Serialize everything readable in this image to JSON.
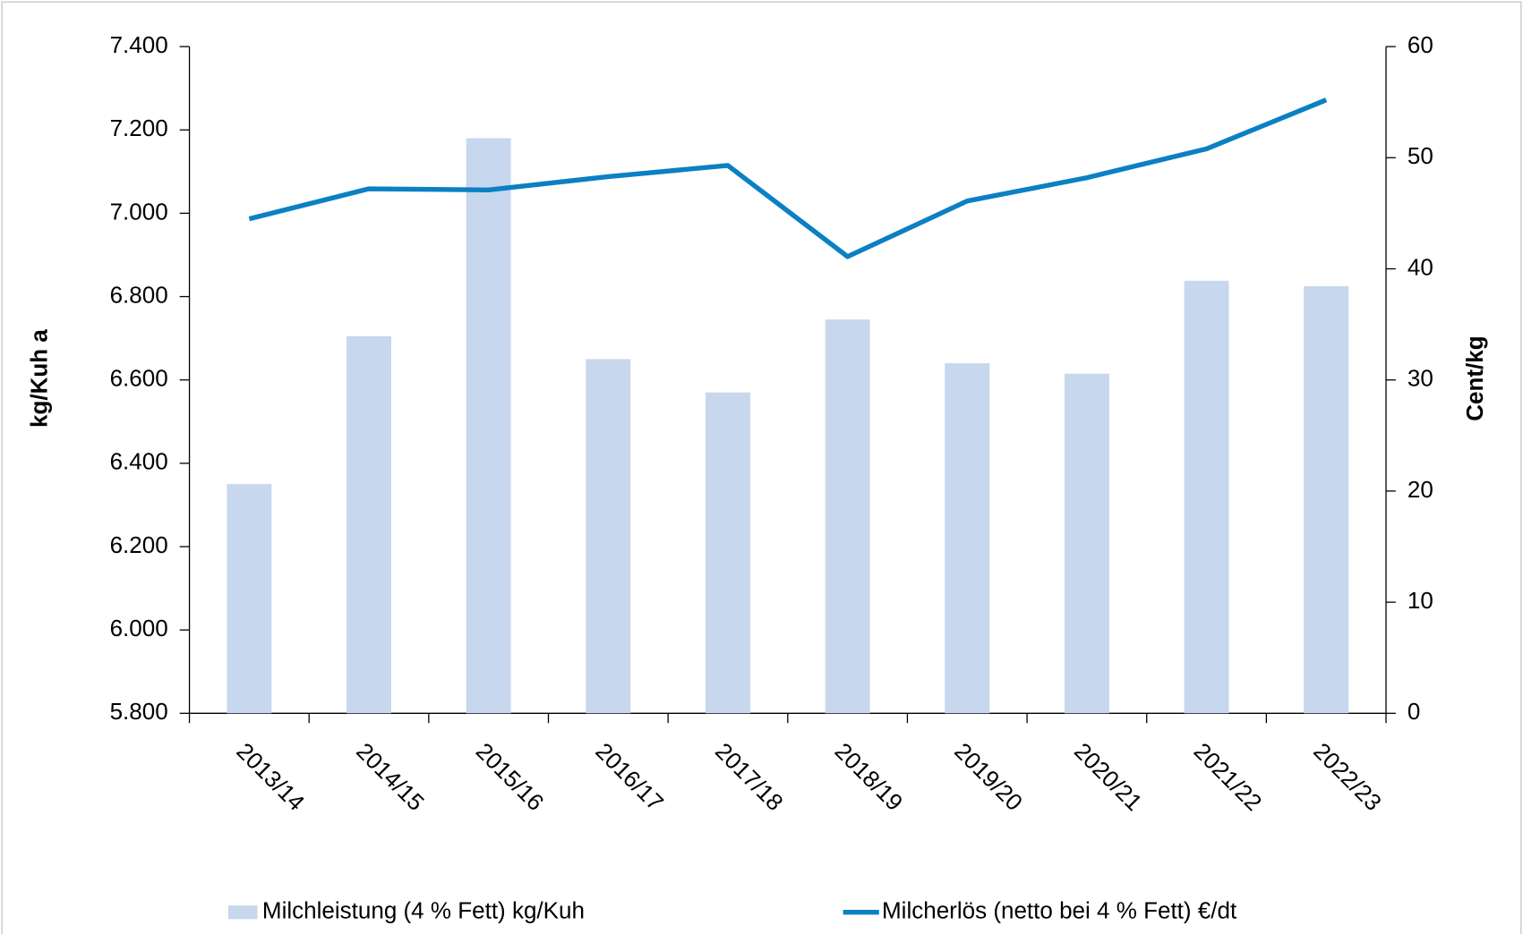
{
  "chart_data": {
    "type": "bar",
    "y_label": "kg/Kuh a",
    "y2_label": "Cent/kg",
    "categories": [
      "2013/14",
      "2014/15",
      "2015/16",
      "2016/17",
      "2017/18",
      "2018/19",
      "2019/20",
      "2020/21",
      "2021/22",
      "2022/23"
    ],
    "series": [
      {
        "name": "Milchleistung (4 % Fett) kg/Kuh",
        "type": "bar",
        "color": "#c6d7ee",
        "values": [
          6350,
          6705,
          7180,
          6650,
          6570,
          6745,
          6640,
          6615,
          6838,
          6825
        ]
      },
      {
        "name": "Milcherlös (netto bei 4 % Fett) €/dt",
        "type": "line",
        "axis": "y2",
        "color": "#0b80c3",
        "values": [
          44.5,
          47.2,
          47.1,
          48.3,
          49.3,
          41.1,
          46.1,
          48.2,
          50.8,
          55.2
        ]
      }
    ],
    "ylim": [
      5800,
      7400
    ],
    "yticks": [
      {
        "value": 5800,
        "label": "5.800"
      },
      {
        "value": 6000,
        "label": "6.000"
      },
      {
        "value": 6200,
        "label": "6.200"
      },
      {
        "value": 6400,
        "label": "6.400"
      },
      {
        "value": 6600,
        "label": "6.600"
      },
      {
        "value": 6800,
        "label": "6.800"
      },
      {
        "value": 7000,
        "label": "7.000"
      },
      {
        "value": 7200,
        "label": "7.200"
      },
      {
        "value": 7400,
        "label": "7.400"
      }
    ],
    "y2lim": [
      0,
      60
    ],
    "y2ticks": [
      0,
      10,
      20,
      30,
      40,
      50,
      60
    ],
    "grid": false,
    "legend": "bottom"
  }
}
